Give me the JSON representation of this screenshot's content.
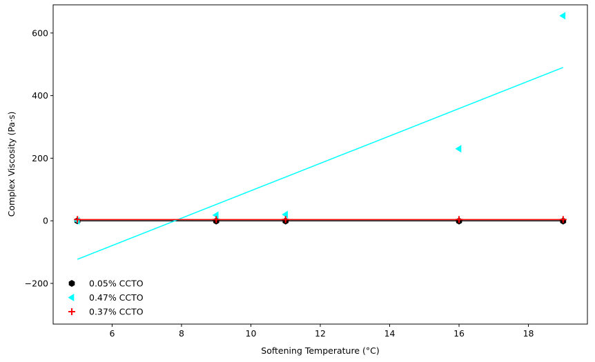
{
  "chart_data": {
    "type": "scatter",
    "xlabel": "Softening Temperature (°C)",
    "ylabel": "Complex Viscosity (Pa·s)",
    "xlim": [
      4.3,
      19.7
    ],
    "ylim": [
      -330,
      690
    ],
    "xticks": [
      6,
      8,
      10,
      12,
      14,
      16,
      18
    ],
    "yticks": [
      -200,
      0,
      200,
      400,
      600
    ],
    "grid": false,
    "legend_position": "lower-left",
    "series": [
      {
        "name": "0.05% CCTO",
        "marker": "hexagon",
        "color": "#000000",
        "x": [
          5,
          9,
          11,
          16,
          19
        ],
        "y": [
          0,
          -1,
          -1,
          -1,
          -1
        ],
        "fit": {
          "x": [
            5,
            19
          ],
          "y": [
            0,
            0
          ]
        }
      },
      {
        "name": "0.47% CCTO",
        "marker": "triangle-left",
        "color": "#00ffff",
        "x": [
          5,
          9,
          11,
          16,
          19
        ],
        "y": [
          0,
          18,
          20,
          230,
          655
        ],
        "fit": {
          "x": [
            5,
            19
          ],
          "y": [
            -123,
            490
          ]
        }
      },
      {
        "name": "0.37% CCTO",
        "marker": "plus",
        "color": "#ff0000",
        "x": [
          5,
          9,
          11,
          16,
          19
        ],
        "y": [
          4,
          4,
          4,
          4,
          4
        ],
        "fit": {
          "x": [
            5,
            19
          ],
          "y": [
            4,
            4
          ]
        }
      }
    ]
  }
}
